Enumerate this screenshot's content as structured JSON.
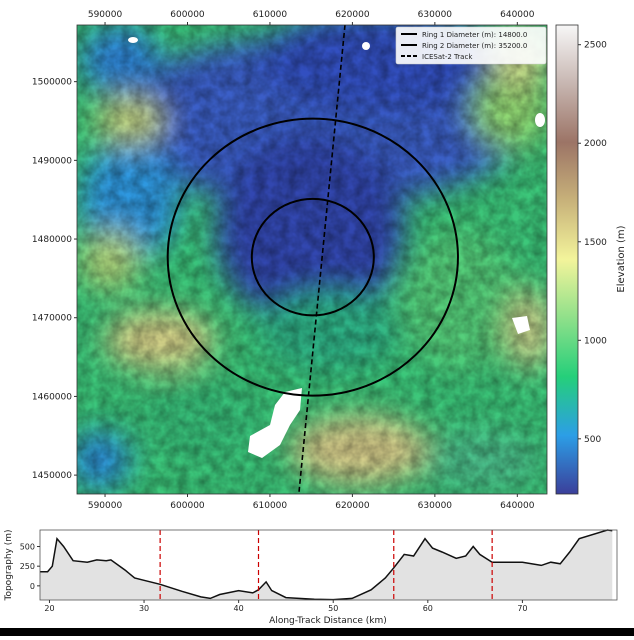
{
  "chart_data": [
    {
      "type": "heatmap",
      "xlim": [
        586600,
        643600
      ],
      "ylim": [
        1447600,
        1507200
      ],
      "x_ticks": [
        590000,
        600000,
        610000,
        620000,
        630000,
        640000
      ],
      "y_ticks": [
        1450000,
        1460000,
        1470000,
        1480000,
        1490000,
        1500000
      ],
      "colorbar": {
        "label": "Elevation (m)",
        "range": [
          220,
          2600
        ],
        "ticks": [
          500,
          1000,
          1500,
          2000,
          2500
        ],
        "colormap": "terrain",
        "colors": [
          "#3b3f9a",
          "#2c9ee6",
          "#25cf7a",
          "#8fe08a",
          "#f3f49b",
          "#c8b27a",
          "#9c7466",
          "#c7b6b1",
          "#f7f7f7"
        ]
      },
      "rings": [
        {
          "name": "Ring 1 Diameter (m): 14800.0",
          "center": [
            615200,
            1477700
          ],
          "diameter": 14800.0
        },
        {
          "name": "Ring 2 Diameter (m): 35200.0",
          "center": [
            615200,
            1477700
          ],
          "diameter": 35200.0
        }
      ],
      "track": {
        "name": "ICESat-2 Track",
        "points": [
          [
            619100,
            1507200
          ],
          [
            613500,
            1447600
          ]
        ]
      },
      "legend": {
        "placement": "top-right",
        "entries": [
          "Ring 1 Diameter (m): 14800.0",
          "Ring 2 Diameter (m): 35200.0",
          "ICESat-2 Track"
        ]
      },
      "grid": false
    },
    {
      "type": "area",
      "xlabel": "Along-Track Distance (km)",
      "ylabel": "Topography (m)",
      "xlim": [
        19,
        80
      ],
      "ylim": [
        -180,
        710
      ],
      "x_ticks": [
        20,
        30,
        40,
        50,
        60,
        70
      ],
      "y_ticks": [
        0,
        250,
        500
      ],
      "fill_color": "#e2e2e2",
      "line_color": "#111111",
      "markers_color": "#cc0000",
      "vertical_markers": [
        31.7,
        42.1,
        56.4,
        66.8
      ],
      "x": [
        19,
        19.8,
        20.3,
        20.8,
        21.5,
        22.5,
        24,
        25,
        26,
        26.5,
        28,
        29,
        30,
        31.7,
        34,
        36,
        37,
        38,
        40,
        41.5,
        42.1,
        42.9,
        43.5,
        45,
        48,
        50,
        52,
        54,
        55.5,
        56.4,
        57.5,
        58.5,
        59.7,
        60.5,
        61.5,
        63,
        64,
        64.8,
        65.5,
        66.8,
        70,
        72,
        73,
        74,
        75,
        76,
        79,
        79.5
      ],
      "y": [
        180,
        180,
        250,
        600,
        500,
        320,
        300,
        330,
        320,
        330,
        200,
        100,
        70,
        20,
        -70,
        -140,
        -160,
        -110,
        -60,
        -90,
        -50,
        50,
        -60,
        -150,
        -170,
        -175,
        -160,
        -50,
        100,
        230,
        400,
        380,
        600,
        480,
        430,
        350,
        380,
        500,
        400,
        300,
        300,
        260,
        300,
        280,
        430,
        600,
        710,
        700
      ],
      "grid": false
    }
  ]
}
